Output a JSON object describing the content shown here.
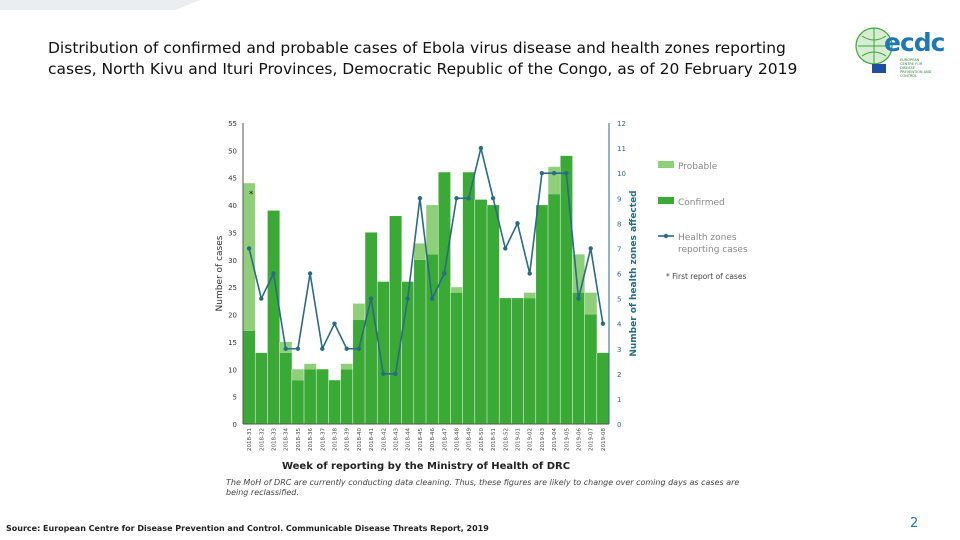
{
  "slide": {
    "title": "Distribution of confirmed and probable cases of Ebola virus disease and health zones reporting cases, North Kivu and Ituri Provinces, Democratic Republic of the Congo, as of 20 February 2019",
    "source": "Source: European Centre for Disease Prevention and Control. Communicable Disease Threats Report, 2019",
    "note": "The MoH of DRC are currently conducting data cleaning. Thus, these figures are likely to change over coming days as cases are being reclassified.",
    "page_number": "2",
    "logo_text": "ecdc",
    "logo_subtext": "EUROPEAN CENTRE FOR DISEASE PREVENTION AND CONTROL"
  },
  "chart_data": {
    "type": "bar",
    "stacked": true,
    "xlabel": "Week of reporting by the Ministry of Health of DRC",
    "ylabel": "Number of cases",
    "y2label": "Number of health zones affected",
    "ylim": [
      0,
      55
    ],
    "y2lim": [
      0,
      12
    ],
    "yticks": [
      0,
      5,
      10,
      15,
      20,
      25,
      30,
      35,
      40,
      45,
      50,
      55
    ],
    "y2ticks": [
      0,
      1,
      2,
      3,
      4,
      5,
      6,
      7,
      8,
      9,
      10,
      11,
      12
    ],
    "categories": [
      "2018-31",
      "2018-32",
      "2018-33",
      "2018-34",
      "2018-35",
      "2018-36",
      "2018-37",
      "2018-38",
      "2018-39",
      "2018-40",
      "2018-41",
      "2018-42",
      "2018-43",
      "2018-44",
      "2018-45",
      "2018-46",
      "2018-47",
      "2018-48",
      "2018-49",
      "2018-50",
      "2018-51",
      "2018-52",
      "2019-01",
      "2019-02",
      "2019-03",
      "2019-04",
      "2019-05",
      "2019-06",
      "2019-07",
      "2019-08"
    ],
    "series": [
      {
        "name": "Probable",
        "color": "#8fcf7a",
        "values": [
          27,
          0,
          0,
          2,
          2,
          1,
          0,
          0,
          1,
          3,
          0,
          0,
          0,
          0,
          3,
          9,
          0,
          1,
          0,
          0,
          0,
          0,
          0,
          1,
          0,
          5,
          0,
          7,
          4,
          0
        ]
      },
      {
        "name": "Confirmed",
        "color": "#3aa935",
        "values": [
          17,
          13,
          39,
          13,
          8,
          10,
          10,
          8,
          10,
          19,
          35,
          26,
          38,
          26,
          30,
          31,
          46,
          24,
          46,
          41,
          40,
          23,
          23,
          23,
          40,
          42,
          49,
          24,
          20,
          13
        ]
      },
      {
        "name": "Health zones reporting cases",
        "color": "#2a6b86",
        "axis": "secondary",
        "type": "line",
        "values": [
          7,
          5,
          6,
          3,
          3,
          6,
          3,
          4,
          3,
          3,
          5,
          2,
          2,
          5,
          9,
          5,
          6,
          9,
          9,
          11,
          9,
          7,
          8,
          6,
          10,
          10,
          10,
          5,
          7,
          4
        ]
      }
    ],
    "annotations": [
      {
        "text": "*",
        "category": "2018-31"
      }
    ],
    "legend": {
      "position": "right",
      "items": [
        "Probable",
        "Confirmed",
        "Health zones reporting cases"
      ],
      "footnote": "* First report of cases"
    },
    "grid": false
  }
}
